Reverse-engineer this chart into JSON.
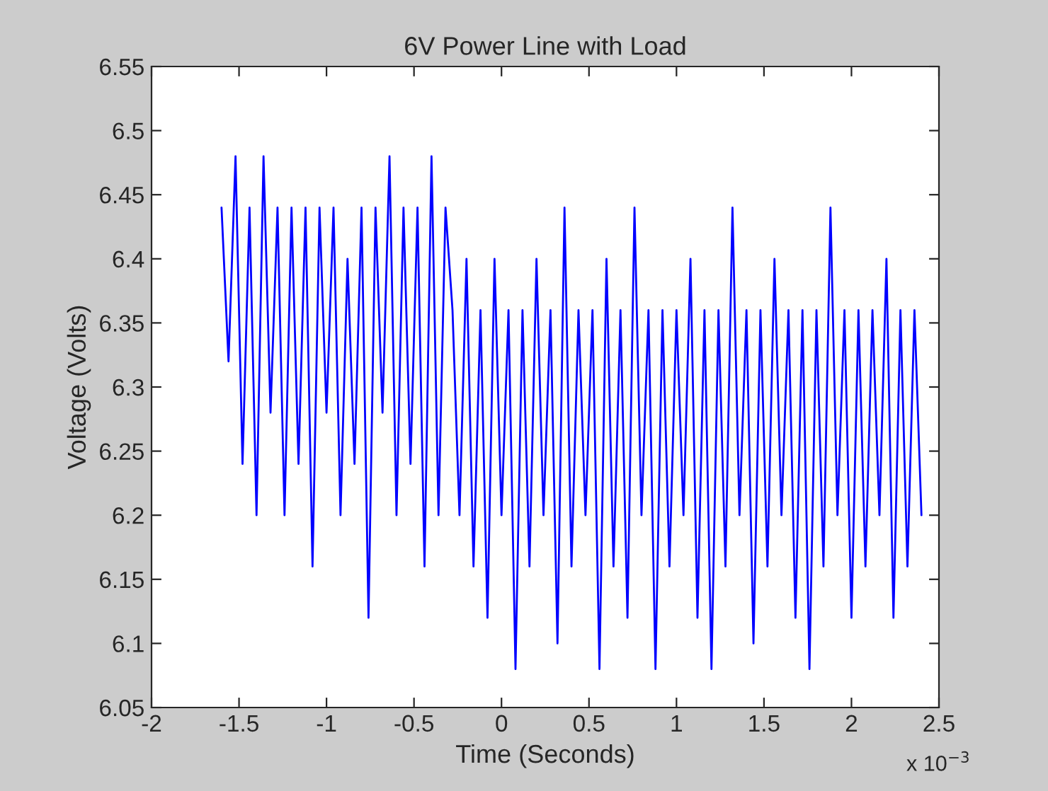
{
  "chart_data": {
    "type": "line",
    "title": "6V Power Line with Load",
    "xlabel": "Time (Seconds)",
    "ylabel": "Voltage (Volts)",
    "annotations": [
      "x 10$^{−3}$"
    ],
    "x": [
      -1.6,
      -1.56,
      -1.52,
      -1.48,
      -1.44,
      -1.4,
      -1.36,
      -1.32,
      -1.28,
      -1.24,
      -1.2,
      -1.16,
      -1.12,
      -1.08,
      -1.04,
      -1,
      -0.96,
      -0.92,
      -0.88,
      -0.84,
      -0.8,
      -0.76,
      -0.72,
      -0.68,
      -0.64,
      -0.6,
      -0.56,
      -0.52,
      -0.48,
      -0.44,
      -0.4,
      -0.36,
      -0.32,
      -0.28,
      -0.24,
      -0.2,
      -0.16,
      -0.12,
      -0.08,
      -0.04,
      0,
      0.04,
      0.08,
      0.12,
      0.16,
      0.2,
      0.24,
      0.28,
      0.32,
      0.36,
      0.4,
      0.44,
      0.48,
      0.52,
      0.56,
      0.6,
      0.64,
      0.68,
      0.72,
      0.76,
      0.8,
      0.84,
      0.88,
      0.92,
      0.96,
      1,
      1.04,
      1.08,
      1.12,
      1.16,
      1.2,
      1.24,
      1.28,
      1.32,
      1.36,
      1.4,
      1.44,
      1.48,
      1.52,
      1.56,
      1.6,
      1.64,
      1.68,
      1.72,
      1.76,
      1.8,
      1.84,
      1.88,
      1.92,
      1.96,
      2,
      2.04,
      2.08,
      2.12,
      2.16,
      2.2,
      2.24,
      2.28,
      2.32,
      2.36,
      2.4
    ],
    "series": [
      {
        "color": "#0000ff",
        "values": [
          6.44,
          6.32,
          6.48,
          6.24,
          6.44,
          6.2,
          6.48,
          6.28,
          6.44,
          6.2,
          6.44,
          6.24,
          6.44,
          6.16,
          6.44,
          6.28,
          6.44,
          6.2,
          6.4,
          6.24,
          6.44,
          6.12,
          6.44,
          6.28,
          6.48,
          6.2,
          6.44,
          6.24,
          6.44,
          6.16,
          6.48,
          6.2,
          6.44,
          6.36,
          6.2,
          6.4,
          6.16,
          6.36,
          6.12,
          6.4,
          6.2,
          6.36,
          6.08,
          6.36,
          6.16,
          6.4,
          6.2,
          6.36,
          6.1,
          6.44,
          6.16,
          6.36,
          6.2,
          6.36,
          6.08,
          6.4,
          6.16,
          6.36,
          6.12,
          6.44,
          6.2,
          6.36,
          6.08,
          6.36,
          6.16,
          6.36,
          6.2,
          6.4,
          6.12,
          6.36,
          6.08,
          6.36,
          6.16,
          6.44,
          6.2,
          6.36,
          6.1,
          6.36,
          6.16,
          6.4,
          6.2,
          6.36,
          6.12,
          6.36,
          6.08,
          6.36,
          6.16,
          6.44,
          6.2,
          6.36,
          6.12,
          6.36,
          6.16,
          6.36,
          6.2,
          6.4,
          6.12,
          6.36,
          6.16,
          6.36,
          6.2
        ]
      }
    ],
    "xlim": [
      -2,
      2.5
    ],
    "xticks": [
      -2,
      -1.5,
      -1,
      -0.5,
      0,
      0.5,
      1,
      1.5,
      2,
      2.5
    ],
    "ylim": [
      6.05,
      6.55
    ],
    "yticks": [
      6.05,
      6.1,
      6.15,
      6.2,
      6.25,
      6.3,
      6.35,
      6.4,
      6.45,
      6.5,
      6.55
    ],
    "grid": false,
    "legend": false,
    "marker": "none",
    "line_style": "solid"
  }
}
